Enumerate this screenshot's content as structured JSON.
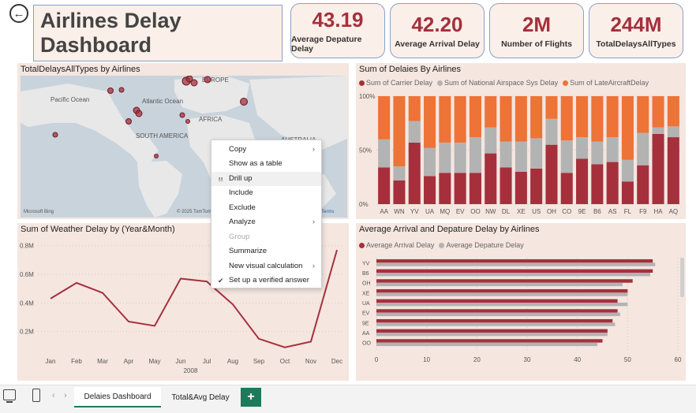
{
  "header": {
    "title": "Airlines Delay Dashboard"
  },
  "kpis": [
    {
      "value": "43.19",
      "label": "Average Depature Delay"
    },
    {
      "value": "42.20",
      "label": "Average Arrival Delay"
    },
    {
      "value": "2M",
      "label": "Number of Flights"
    },
    {
      "value": "244M",
      "label": "TotalDelaysAllTypes"
    }
  ],
  "map_panel": {
    "title": "TotalDelaysAllTypes by Airlines",
    "labels": {
      "pacific": "Pacific Ocean",
      "atlantic": "Atlantic Ocean",
      "europe": "EUROPE",
      "africa": "AFRICA",
      "south_america": "SOUTH AMERICA",
      "australia": "AUSTRALIA"
    },
    "bing": "Microsoft Bing",
    "copyright": "© 2025 TomTom",
    "terms": "Terms"
  },
  "context_menu": {
    "items": [
      {
        "label": "Copy",
        "submenu": true,
        "icon": "",
        "disabled": false,
        "highlighted": false
      },
      {
        "label": "Show as a table",
        "submenu": false,
        "icon": "",
        "disabled": false,
        "highlighted": false
      },
      {
        "label": "Drill up",
        "submenu": false,
        "icon": "drill-up-icon",
        "disabled": false,
        "highlighted": true
      },
      {
        "label": "Include",
        "submenu": false,
        "icon": "",
        "disabled": false,
        "highlighted": false
      },
      {
        "label": "Exclude",
        "submenu": false,
        "icon": "",
        "disabled": false,
        "highlighted": false
      },
      {
        "label": "Analyze",
        "submenu": true,
        "icon": "",
        "disabled": false,
        "highlighted": false
      },
      {
        "label": "Group",
        "submenu": false,
        "icon": "",
        "disabled": true,
        "highlighted": false
      },
      {
        "label": "Summarize",
        "submenu": false,
        "icon": "",
        "disabled": false,
        "highlighted": false
      },
      {
        "label": "New visual calculation",
        "submenu": true,
        "icon": "",
        "disabled": false,
        "highlighted": false
      },
      {
        "label": "Set up a verified answer",
        "submenu": false,
        "icon": "check-circle-icon",
        "disabled": false,
        "highlighted": false
      }
    ]
  },
  "tabs": {
    "tab1": "Delaies Dashboard",
    "tab2": "Total&Avg Delay",
    "add": "+"
  },
  "colors": {
    "carrier": "#a5303c",
    "nas": "#b3b3b3",
    "late": "#ed7337",
    "line": "#a5303c",
    "panel": "#f5e6e0"
  },
  "chart_data": [
    {
      "type": "bar",
      "title": "Sum of Delaies By Airlines",
      "stacked": "100%",
      "categories": [
        "AA",
        "WN",
        "YV",
        "UA",
        "MQ",
        "EV",
        "OO",
        "NW",
        "DL",
        "XE",
        "US",
        "OH",
        "CO",
        "9E",
        "B6",
        "AS",
        "FL",
        "F9",
        "HA",
        "AQ"
      ],
      "series": [
        {
          "name": "Sum of Carrier Delay",
          "color": "#a5303c",
          "values": [
            34,
            22,
            57,
            26,
            29,
            29,
            29,
            47,
            34,
            30,
            33,
            55,
            29,
            42,
            37,
            39,
            21,
            36,
            65,
            62
          ]
        },
        {
          "name": "Sum of National Airspace Sys  Delay",
          "color": "#b3b3b3",
          "values": [
            26,
            13,
            20,
            26,
            28,
            28,
            33,
            24,
            24,
            28,
            28,
            24,
            30,
            20,
            21,
            23,
            20,
            30,
            6,
            10
          ]
        },
        {
          "name": "Sum of LateAircraftDelay",
          "color": "#ed7337",
          "values": [
            40,
            65,
            23,
            48,
            43,
            43,
            38,
            29,
            42,
            42,
            39,
            21,
            41,
            38,
            42,
            38,
            59,
            34,
            29,
            28
          ]
        }
      ],
      "y_ticks": [
        "100%",
        "50%",
        "0%"
      ],
      "ylim": [
        0,
        100
      ]
    },
    {
      "type": "line",
      "title": "Sum of Weather Delay by (Year&Month)",
      "x": [
        "Jan",
        "Feb",
        "Mar",
        "Apr",
        "May",
        "Jun",
        "Jul",
        "Aug",
        "Sep",
        "Oct",
        "Nov",
        "Dec"
      ],
      "xlabel": "2008",
      "series": [
        {
          "name": "Sum of Weather Delay",
          "values": [
            0.43,
            0.54,
            0.47,
            0.27,
            0.24,
            0.57,
            0.55,
            0.39,
            0.15,
            0.09,
            0.13,
            0.77
          ]
        }
      ],
      "y_ticks": [
        "0.8M",
        "0.6M",
        "0.4M",
        "0.2M"
      ],
      "ylim": [
        0.05,
        0.82
      ]
    },
    {
      "type": "bar",
      "orientation": "horizontal",
      "title": "Average Arrival and Depature Delay by Airlines",
      "categories": [
        "YV",
        "B6",
        "OH",
        "XE",
        "UA",
        "EV",
        "9E",
        "AA",
        "OO"
      ],
      "series": [
        {
          "name": "Average Arrival Delay",
          "color": "#a5303c",
          "values": [
            55,
            55,
            51,
            50,
            48,
            48,
            47,
            46,
            45
          ]
        },
        {
          "name": "Average Depature Delay",
          "color": "#b3b3b3",
          "values": [
            55.5,
            54.5,
            49,
            50,
            50,
            48.5,
            47.5,
            46,
            44
          ]
        }
      ],
      "x_ticks": [
        "0",
        "10",
        "20",
        "30",
        "40",
        "50",
        "60"
      ],
      "xlim": [
        0,
        60
      ]
    }
  ]
}
